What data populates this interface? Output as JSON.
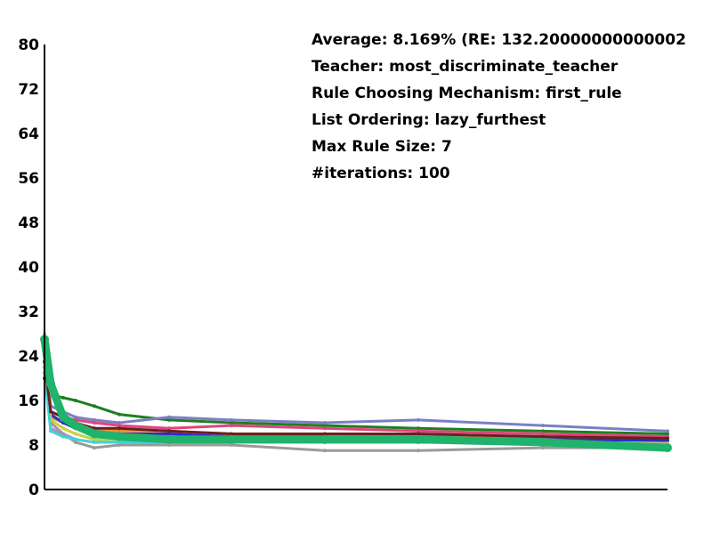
{
  "chart_data": {
    "type": "line",
    "title": "",
    "xlabel": "",
    "ylabel": "",
    "ylim": [
      0,
      80
    ],
    "xlim": [
      0,
      100
    ],
    "yticks": [
      "0",
      "8",
      "16",
      "24",
      "32",
      "40",
      "48",
      "56",
      "64",
      "72",
      "80"
    ],
    "grid": false,
    "legend": "none",
    "info_lines": [
      "Average: 8.169% (RE: 132.20000000000002",
      "Teacher: most_discriminate_teacher",
      "Rule Choosing Mechanism: first_rule",
      "List Ordering: lazy_furthest",
      "Max Rule Size: 7",
      "#iterations: 100"
    ],
    "series": [
      {
        "color": "#1f7f1f",
        "x": [
          0,
          1,
          3,
          5,
          8,
          12,
          20,
          30,
          45,
          60,
          80,
          100
        ],
        "y": [
          21,
          17,
          16.5,
          16,
          15,
          13.5,
          12.5,
          12,
          11.5,
          11,
          10.5,
          10
        ]
      },
      {
        "color": "#7b7fc4",
        "x": [
          0,
          1,
          3,
          5,
          8,
          12,
          20,
          30,
          45,
          60,
          80,
          100
        ],
        "y": [
          26,
          15,
          14,
          13,
          12.5,
          12,
          13,
          12.5,
          12,
          12.5,
          11.5,
          10.5
        ]
      },
      {
        "color": "#e0457b",
        "x": [
          0,
          1,
          3,
          5,
          8,
          12,
          20,
          30,
          45,
          60,
          80,
          100
        ],
        "y": [
          24,
          14,
          13,
          12.5,
          12,
          11.5,
          11,
          11.5,
          11,
          10.5,
          10,
          9.5
        ]
      },
      {
        "color": "#f28c28",
        "x": [
          0,
          1,
          3,
          5,
          8,
          12,
          20,
          30,
          45,
          60,
          80,
          100
        ],
        "y": [
          23,
          13,
          12,
          11.5,
          11,
          10.5,
          10.5,
          10,
          10,
          9.5,
          9.5,
          9
        ]
      },
      {
        "color": "#2b2bd1",
        "x": [
          0,
          1,
          3,
          5,
          8,
          12,
          20,
          30,
          45,
          60,
          80,
          100
        ],
        "y": [
          20,
          13.5,
          12,
          11,
          10.5,
          10,
          10,
          9.5,
          9.5,
          9,
          9,
          8.8
        ]
      },
      {
        "color": "#b58ad9",
        "x": [
          0,
          1,
          3,
          5,
          8,
          12,
          20,
          30,
          45,
          60,
          80,
          100
        ],
        "y": [
          25,
          11,
          10,
          9,
          8.5,
          8.5,
          9,
          9,
          8.5,
          8.5,
          8.5,
          8.3
        ]
      },
      {
        "color": "#9a9a9a",
        "x": [
          0,
          1,
          3,
          5,
          8,
          12,
          20,
          30,
          45,
          60,
          80,
          100
        ],
        "y": [
          22,
          12,
          10,
          8.5,
          7.5,
          8,
          8,
          8,
          7,
          7,
          7.5,
          7.5
        ]
      },
      {
        "color": "#c7d13c",
        "x": [
          0,
          1,
          3,
          5,
          8,
          12,
          20,
          30,
          45,
          60,
          80,
          100
        ],
        "y": [
          28,
          12.5,
          11,
          10,
          9,
          8.5,
          8.5,
          8.5,
          8.5,
          9,
          8.5,
          8.2
        ]
      },
      {
        "color": "#3fd4d4",
        "x": [
          0,
          1,
          3,
          5,
          8,
          12,
          20,
          30,
          45,
          60,
          80,
          100
        ],
        "y": [
          21,
          10.5,
          9.5,
          9,
          8.5,
          8.5,
          8.5,
          8.5,
          8.5,
          8.5,
          8.5,
          8
        ]
      },
      {
        "color": "#6b1f1f",
        "x": [
          0,
          1,
          3,
          5,
          8,
          12,
          20,
          30,
          45,
          60,
          80,
          100
        ],
        "y": [
          23,
          14,
          13,
          12,
          11,
          11,
          10.5,
          10,
          10,
          10,
          9.5,
          9.2
        ]
      },
      {
        "color": "#1fb36b",
        "x": [
          0,
          1,
          3,
          5,
          8,
          12,
          20,
          30,
          45,
          60,
          80,
          100
        ],
        "y": [
          27,
          19,
          13,
          11.5,
          10,
          9.5,
          9,
          9,
          9,
          9,
          8.5,
          7.5
        ]
      }
    ]
  }
}
